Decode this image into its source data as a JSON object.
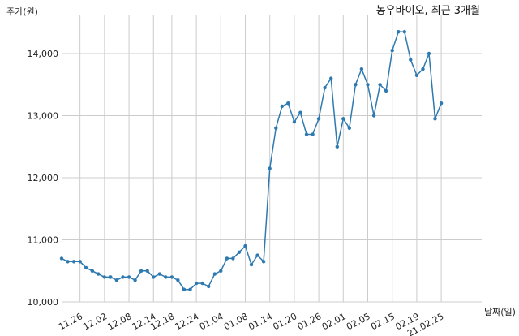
{
  "chart_data": {
    "type": "line",
    "title": "농우바이오, 최근 3개월",
    "ylabel": "주가(원)",
    "xlabel": "날짜(일)",
    "ylim": [
      10000,
      14600
    ],
    "yticks": [
      10000,
      11000,
      12000,
      13000,
      14000
    ],
    "ytick_labels": [
      "10,000",
      "11,000",
      "12,000",
      "13,000",
      "14,000"
    ],
    "xtick_labels": [
      "11.26",
      "12.02",
      "12.08",
      "12.14",
      "12.18",
      "12.24",
      "01.04",
      "01.08",
      "01.14",
      "01.20",
      "01.26",
      "02.01",
      "02.05",
      "02.15",
      "02.19",
      "21.02.25"
    ],
    "xtick_index": [
      3,
      7,
      11,
      15,
      18,
      22,
      26,
      30,
      34,
      38,
      42,
      46,
      50,
      54,
      58,
      62
    ],
    "grid": true,
    "line_color": "#2e7ab0",
    "series": [
      {
        "values": [
          10700,
          10650,
          10650,
          10650,
          10550,
          10500,
          10450,
          10400,
          10400,
          10350,
          10400,
          10400,
          10350,
          10500,
          10500,
          10400,
          10450,
          10400,
          10400,
          10350,
          10200,
          10200,
          10300,
          10300,
          10250,
          10450,
          10500,
          10700,
          10700,
          10800,
          10900,
          10600,
          10750,
          10650,
          12150,
          12800,
          13150,
          13200,
          12900,
          13050,
          12700,
          12700,
          12950,
          13450,
          13600,
          12500,
          12950,
          12800,
          13500,
          13750,
          13500,
          13000,
          13500,
          13400,
          14050,
          14350,
          14350,
          13900,
          13650,
          13750,
          14000,
          12950,
          13200
        ]
      }
    ]
  }
}
